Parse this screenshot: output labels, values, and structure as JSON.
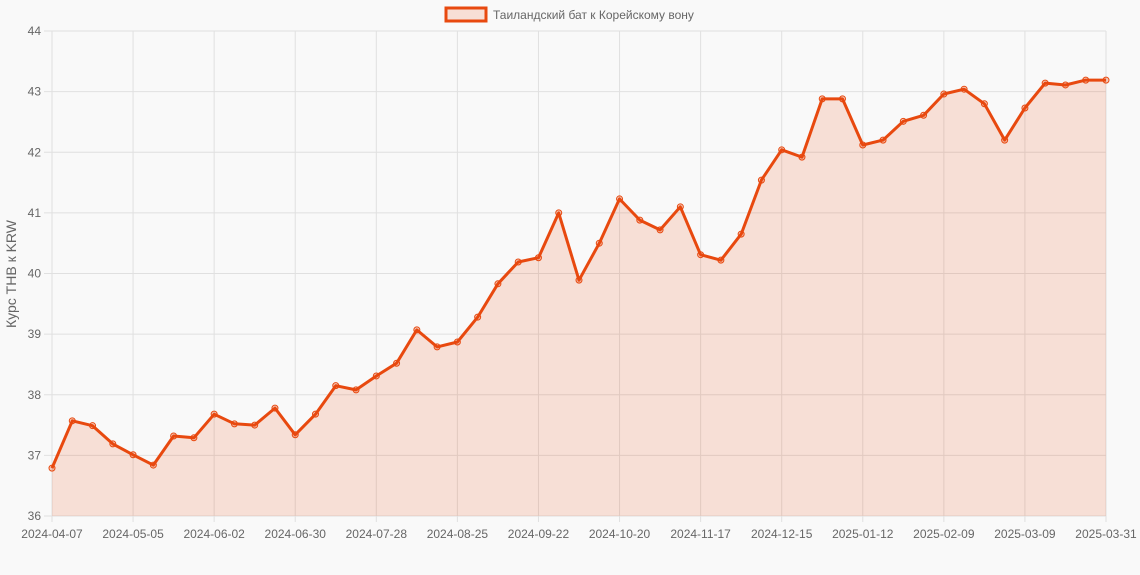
{
  "colors": {
    "line": "#e8490f",
    "fill": "rgba(232,73,15,0.15)",
    "grid": "#e0e0e0",
    "axis_text": "#666666",
    "background": "#f9f9f9"
  },
  "chart_data": {
    "type": "line",
    "title": "",
    "legend": {
      "label": "Таиландский бат к Корейскому вону",
      "position": "top"
    },
    "xlabel": "",
    "ylabel": "Курс THB к KRW",
    "ylim": [
      36,
      44
    ],
    "yticks": [
      36,
      37,
      38,
      39,
      40,
      41,
      42,
      43,
      44
    ],
    "grid": true,
    "x_tick_labels": [
      "2024-04-07",
      "2024-05-05",
      "2024-06-02",
      "2024-06-30",
      "2024-07-28",
      "2024-08-25",
      "2024-09-22",
      "2024-10-20",
      "2024-11-17",
      "2024-12-15",
      "2025-01-12",
      "2025-02-09",
      "2025-03-09",
      "2025-03-31"
    ],
    "x": [
      "2024-04-07",
      "2024-04-14",
      "2024-04-21",
      "2024-04-28",
      "2024-05-05",
      "2024-05-12",
      "2024-05-19",
      "2024-05-26",
      "2024-06-02",
      "2024-06-09",
      "2024-06-16",
      "2024-06-23",
      "2024-06-30",
      "2024-07-07",
      "2024-07-14",
      "2024-07-21",
      "2024-07-28",
      "2024-08-04",
      "2024-08-11",
      "2024-08-18",
      "2024-08-25",
      "2024-09-01",
      "2024-09-08",
      "2024-09-15",
      "2024-09-22",
      "2024-09-29",
      "2024-10-06",
      "2024-10-13",
      "2024-10-20",
      "2024-10-27",
      "2024-11-03",
      "2024-11-10",
      "2024-11-17",
      "2024-11-24",
      "2024-12-01",
      "2024-12-08",
      "2024-12-15",
      "2024-12-22",
      "2024-12-29",
      "2025-01-05",
      "2025-01-12",
      "2025-01-19",
      "2025-01-26",
      "2025-02-02",
      "2025-02-09",
      "2025-02-16",
      "2025-02-23",
      "2025-03-02",
      "2025-03-09",
      "2025-03-16",
      "2025-03-23",
      "2025-03-30",
      "2025-03-31"
    ],
    "series": [
      {
        "name": "Таиландский бат к Корейскому вону",
        "values": [
          36.79,
          37.57,
          37.49,
          37.19,
          37.01,
          36.84,
          37.32,
          37.29,
          37.68,
          37.52,
          37.5,
          37.78,
          37.34,
          37.68,
          38.15,
          38.08,
          38.31,
          38.52,
          39.07,
          38.79,
          38.87,
          39.28,
          39.83,
          40.19,
          40.26,
          41.0,
          39.89,
          40.5,
          41.23,
          40.88,
          40.72,
          41.1,
          40.31,
          40.22,
          40.65,
          41.54,
          42.04,
          41.92,
          42.88,
          42.88,
          42.12,
          42.2,
          42.51,
          42.61,
          42.96,
          43.04,
          42.8,
          42.2,
          42.73,
          43.14,
          43.11,
          43.19,
          43.19
        ]
      }
    ]
  }
}
